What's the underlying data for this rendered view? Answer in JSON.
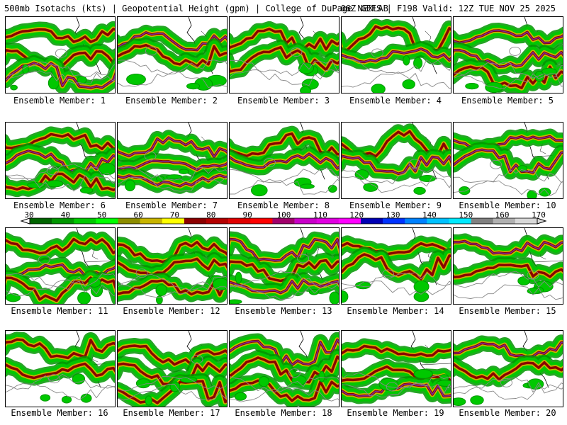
{
  "header": {
    "title_left": "500mb Isotachs (kts) | Geopotential Height (gpm) | College of DuPage NEXLAB",
    "title_right": "06Z GEFS | F198 Valid: 12Z TUE NOV 25 2025"
  },
  "members": [
    "Ensemble Member: 1",
    "Ensemble Member: 2",
    "Ensemble Member: 3",
    "Ensemble Member: 4",
    "Ensemble Member: 5",
    "Ensemble Member: 6",
    "Ensemble Member: 7",
    "Ensemble Member: 8",
    "Ensemble Member: 9",
    "Ensemble Member: 10",
    "Ensemble Member: 11",
    "Ensemble Member: 12",
    "Ensemble Member: 13",
    "Ensemble Member: 14",
    "Ensemble Member: 15",
    "Ensemble Member: 16",
    "Ensemble Member: 17",
    "Ensemble Member: 18",
    "Ensemble Member: 19",
    "Ensemble Member: 20"
  ],
  "colorbar": {
    "ticks": [
      "30",
      "40",
      "50",
      "60",
      "70",
      "80",
      "90",
      "100",
      "110",
      "120",
      "130",
      "140",
      "150",
      "160",
      "170"
    ],
    "colors": [
      "#006400",
      "#009600",
      "#00c800",
      "#00ff00",
      "#8c8c00",
      "#c8b400",
      "#ffff00",
      "#8b0000",
      "#b40000",
      "#e00000",
      "#ff0000",
      "#a0006a",
      "#c800c8",
      "#e000e0",
      "#ff00ff",
      "#0000b4",
      "#0032ff",
      "#0080ff",
      "#00c0ff",
      "#00e8ff",
      "#808080",
      "#b0b0b0",
      "#d8d8d8"
    ]
  },
  "legend_colors": {
    "jet_core": "#8b0000",
    "jet_high": "#7a2a9a",
    "jet_mid": "#c8b400",
    "jet_low": "#00c800",
    "jet_edge": "#009600",
    "height_contour": "#888888",
    "coastline": "#000000"
  }
}
